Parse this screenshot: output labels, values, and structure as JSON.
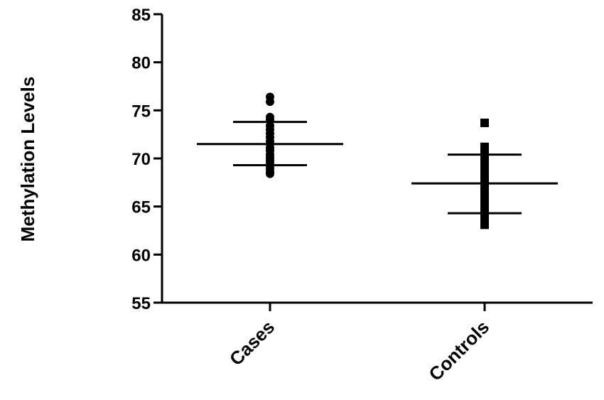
{
  "chart_data": {
    "type": "scatter",
    "title": "",
    "xlabel": "",
    "ylabel": "Methylation Levels",
    "ylim": [
      55,
      85
    ],
    "yticks": [
      55,
      60,
      65,
      70,
      75,
      80,
      85
    ],
    "categories": [
      "Cases",
      "Controls"
    ],
    "grid": false,
    "series": [
      {
        "category": "Cases",
        "marker": "circle",
        "mean": 71.5,
        "sd_upper": 73.8,
        "sd_lower": 69.3,
        "values": [
          76.4,
          75.9,
          74.3,
          74.0,
          73.4,
          73.0,
          72.6,
          72.2,
          71.8,
          71.5,
          71.1,
          70.8,
          70.4,
          70.1,
          69.8,
          69.5,
          69.2,
          68.9,
          68.6,
          68.4
        ]
      },
      {
        "category": "Controls",
        "marker": "square",
        "mean": 67.4,
        "sd_upper": 70.4,
        "sd_lower": 64.3,
        "values": [
          73.7,
          71.2,
          70.7,
          70.0,
          69.3,
          68.6,
          67.9,
          67.3,
          66.7,
          66.1,
          65.5,
          64.9,
          64.4,
          63.9,
          63.5,
          63.1
        ]
      }
    ],
    "colors": {
      "marks": "#000000",
      "background": "#ffffff"
    }
  }
}
